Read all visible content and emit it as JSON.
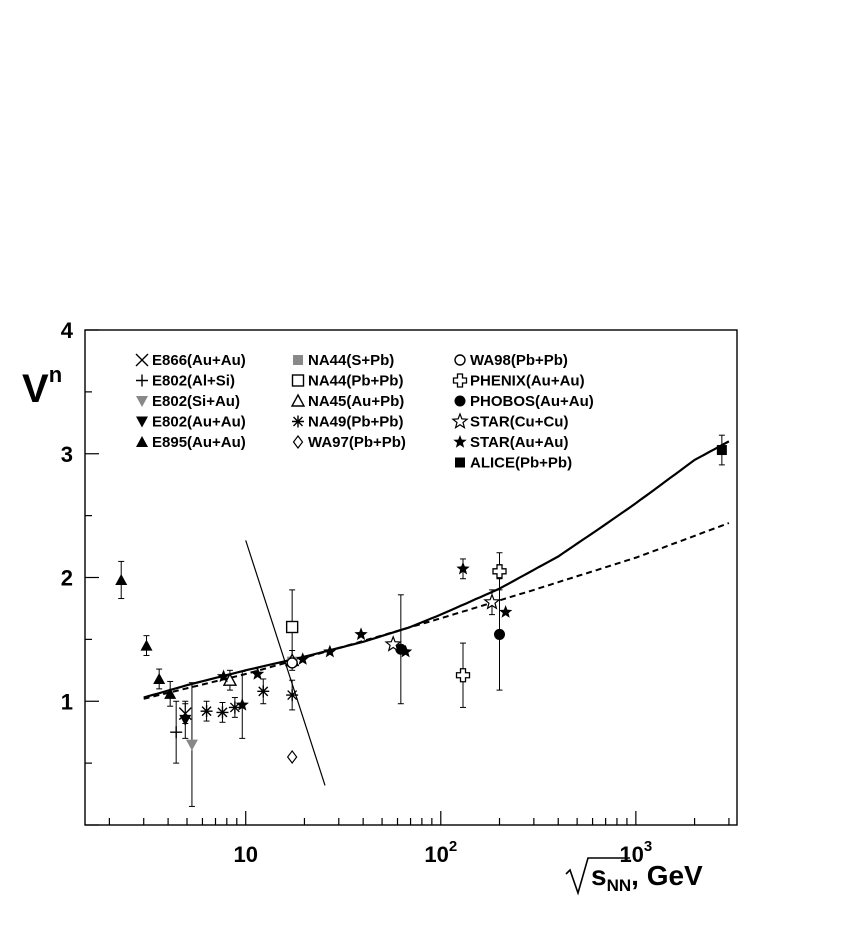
{
  "chart_data": {
    "type": "scatter",
    "x_scale": "log",
    "xlim": [
      1.5,
      3300
    ],
    "ylim": [
      0,
      4
    ],
    "ylabel": "V",
    "ylabel_superscript": "n",
    "xlabel_sqrt": "s",
    "xlabel_sub": "NN",
    "xlabel_unit": ", GeV",
    "x_tick_labels": [
      {
        "value": 10,
        "base": "10",
        "exp": ""
      },
      {
        "value": 100,
        "base": "10",
        "exp": "2"
      },
      {
        "value": 1000,
        "base": "10",
        "exp": "3"
      }
    ],
    "y_tick_labels": [
      {
        "value": 1,
        "label": "1"
      },
      {
        "value": 2,
        "label": "2"
      },
      {
        "value": 3,
        "label": "3"
      },
      {
        "value": 4,
        "label": "4"
      }
    ],
    "legend": [
      [
        {
          "label": "E866(Au+Au)",
          "marker": "x",
          "color": "#000000"
        },
        {
          "label": "E802(Al+Si)",
          "marker": "plus",
          "color": "#000000"
        },
        {
          "label": "E802(Si+Au)",
          "marker": "tri-down",
          "color": "#888888"
        },
        {
          "label": "E802(Au+Au)",
          "marker": "tri-down",
          "color": "#000000"
        },
        {
          "label": "E895(Au+Au)",
          "marker": "tri-up",
          "color": "#000000"
        }
      ],
      [
        {
          "label": "NA44(S+Pb)",
          "marker": "square",
          "color": "#888888"
        },
        {
          "label": "NA44(Pb+Pb)",
          "marker": "square-open",
          "color": "#000000"
        },
        {
          "label": "NA45(Au+Pb)",
          "marker": "tri-up-open",
          "color": "#000000"
        },
        {
          "label": "NA49(Pb+Pb)",
          "marker": "asterisk",
          "color": "#000000"
        },
        {
          "label": "WA97(Pb+Pb)",
          "marker": "diamond-open",
          "color": "#000000"
        }
      ],
      [
        {
          "label": "WA98(Pb+Pb)",
          "marker": "circle-open",
          "color": "#000000"
        },
        {
          "label": "PHENIX(Au+Au)",
          "marker": "cross-open",
          "color": "#000000"
        },
        {
          "label": "PHOBOS(Au+Au)",
          "marker": "circle",
          "color": "#000000"
        },
        {
          "label": "STAR(Cu+Cu)",
          "marker": "star-open",
          "color": "#000000"
        },
        {
          "label": "STAR(Au+Au)",
          "marker": "star",
          "color": "#000000"
        },
        {
          "label": "ALICE(Pb+Pb)",
          "marker": "square",
          "color": "#000000"
        }
      ]
    ],
    "series": [
      {
        "name": "E866(Au+Au)",
        "marker": "x",
        "color": "#000000",
        "points": [
          {
            "x": 4.9,
            "y": 0.9,
            "err": 0.08
          }
        ]
      },
      {
        "name": "E802(Al+Si)",
        "marker": "plus",
        "color": "#000000",
        "points": [
          {
            "x": 4.4,
            "y": 0.75,
            "err": 0.25
          }
        ]
      },
      {
        "name": "E802(Si+Au)",
        "marker": "tri-down",
        "color": "#888888",
        "points": [
          {
            "x": 5.3,
            "y": 0.65,
            "err": 0.5
          }
        ]
      },
      {
        "name": "E802(Au+Au)",
        "marker": "tri-down",
        "color": "#000000",
        "points": [
          {
            "x": 4.9,
            "y": 0.85,
            "err": 0.15
          }
        ]
      },
      {
        "name": "E895(Au+Au)",
        "marker": "tri-up",
        "color": "#000000",
        "points": [
          {
            "x": 2.3,
            "y": 1.98,
            "err": 0.15
          },
          {
            "x": 3.1,
            "y": 1.45,
            "err": 0.08
          },
          {
            "x": 3.6,
            "y": 1.18,
            "err": 0.08
          },
          {
            "x": 4.1,
            "y": 1.06,
            "err": 0.1
          }
        ]
      },
      {
        "name": "NA44(S+Pb)",
        "marker": "square",
        "color": "#888888",
        "points": [
          {
            "x": 17.3,
            "y": 1.32,
            "err": 0.0
          }
        ]
      },
      {
        "name": "NA44(Pb+Pb)",
        "marker": "square-open",
        "color": "#000000",
        "points": [
          {
            "x": 17.3,
            "y": 1.6,
            "err": 0.3
          }
        ]
      },
      {
        "name": "NA45(Au+Pb)",
        "marker": "tri-up-open",
        "color": "#000000",
        "points": [
          {
            "x": 8.3,
            "y": 1.17,
            "err": 0.08
          },
          {
            "x": 17.3,
            "y": 1.33,
            "err": 0.08
          }
        ]
      },
      {
        "name": "NA49(Pb+Pb)",
        "marker": "asterisk",
        "color": "#000000",
        "points": [
          {
            "x": 6.3,
            "y": 0.92,
            "err": 0.08
          },
          {
            "x": 7.6,
            "y": 0.91,
            "err": 0.08
          },
          {
            "x": 8.8,
            "y": 0.95,
            "err": 0.08
          },
          {
            "x": 12.3,
            "y": 1.08,
            "err": 0.1
          },
          {
            "x": 17.3,
            "y": 1.05,
            "err": 0.12
          }
        ]
      },
      {
        "name": "WA97(Pb+Pb)",
        "marker": "diamond-open",
        "color": "#000000",
        "points": [
          {
            "x": 17.3,
            "y": 0.55,
            "err": 0.0
          }
        ]
      },
      {
        "name": "WA98(Pb+Pb)",
        "marker": "circle-open",
        "color": "#000000",
        "points": [
          {
            "x": 17.3,
            "y": 1.31,
            "err": 0.0
          }
        ]
      },
      {
        "name": "PHENIX(Au+Au)",
        "marker": "cross-open",
        "color": "#000000",
        "points": [
          {
            "x": 130,
            "y": 1.21,
            "err": 0.26
          },
          {
            "x": 200,
            "y": 2.05,
            "err": 0.15
          }
        ]
      },
      {
        "name": "PHOBOS(Au+Au)",
        "marker": "circle",
        "color": "#000000",
        "points": [
          {
            "x": 62.4,
            "y": 1.42,
            "err": 0.44
          },
          {
            "x": 200,
            "y": 1.54,
            "err": 0.45
          }
        ]
      },
      {
        "name": "STAR(Cu+Cu)",
        "marker": "star-open",
        "color": "#000000",
        "points": [
          {
            "x": 57,
            "y": 1.46,
            "err": 0.0
          },
          {
            "x": 183,
            "y": 1.8,
            "err": 0.1
          }
        ]
      },
      {
        "name": "STAR(Au+Au)",
        "marker": "star",
        "color": "#000000",
        "points": [
          {
            "x": 7.7,
            "y": 1.2,
            "err": 0.0
          },
          {
            "x": 9.6,
            "y": 0.97,
            "err": 0.27
          },
          {
            "x": 11.5,
            "y": 1.22,
            "err": 0.0
          },
          {
            "x": 19.6,
            "y": 1.34,
            "err": 0.0
          },
          {
            "x": 27,
            "y": 1.4,
            "err": 0.0
          },
          {
            "x": 39,
            "y": 1.54,
            "err": 0.0
          },
          {
            "x": 66,
            "y": 1.4,
            "err": 0.0
          },
          {
            "x": 130,
            "y": 2.07,
            "err": 0.08
          },
          {
            "x": 215,
            "y": 1.72,
            "err": 0.0
          }
        ]
      },
      {
        "name": "ALICE(Pb+Pb)",
        "marker": "square",
        "color": "#000000",
        "points": [
          {
            "x": 2760,
            "y": 3.03,
            "err": 0.12
          }
        ]
      }
    ],
    "curves": [
      {
        "style": "solid",
        "points": [
          [
            3.0,
            1.03
          ],
          [
            5,
            1.13
          ],
          [
            10,
            1.25
          ],
          [
            20,
            1.36
          ],
          [
            40,
            1.48
          ],
          [
            70,
            1.6
          ],
          [
            100,
            1.7
          ],
          [
            200,
            1.91
          ],
          [
            400,
            2.17
          ],
          [
            700,
            2.43
          ],
          [
            1000,
            2.6
          ],
          [
            2000,
            2.95
          ],
          [
            3000,
            3.1
          ]
        ]
      },
      {
        "style": "dashed",
        "points": [
          [
            3.0,
            1.02
          ],
          [
            10,
            1.22
          ],
          [
            30,
            1.43
          ],
          [
            100,
            1.67
          ],
          [
            300,
            1.9
          ],
          [
            1000,
            2.16
          ],
          [
            3000,
            2.44
          ]
        ]
      },
      {
        "style": "thin",
        "points": [
          [
            10,
            2.3
          ],
          [
            25.5,
            0.32
          ]
        ]
      }
    ]
  }
}
